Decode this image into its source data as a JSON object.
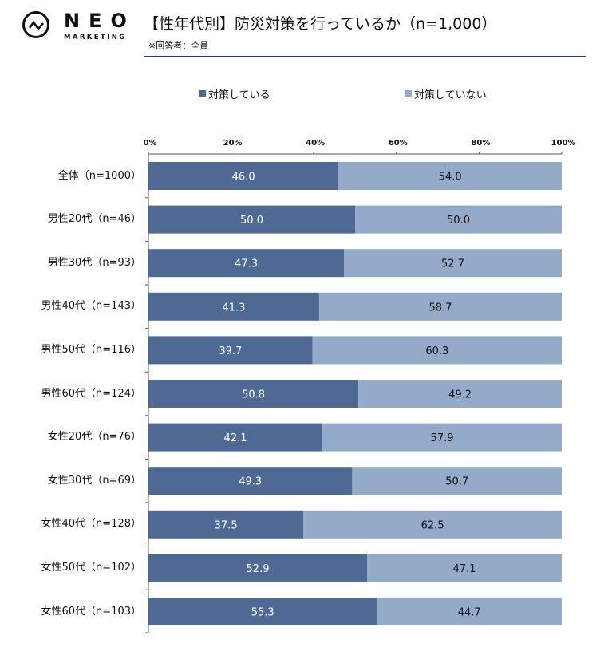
{
  "brand": {
    "logo_name": "NEO",
    "logo_sub": "MARKETING"
  },
  "header": {
    "title": "【性年代別】防災対策を行っているか（n=1,000）",
    "subtitle": "※回答者：全員",
    "rule_color": "#2a3a7c"
  },
  "chart_data": {
    "type": "bar",
    "orientation": "horizontal",
    "stacked": true,
    "title": "【性年代別】防災対策を行っているか（n=1,000）",
    "xlabel": "",
    "ylabel": "",
    "xlim": [
      0,
      100
    ],
    "x_ticks": [
      "0%",
      "20%",
      "40%",
      "60%",
      "80%",
      "100%"
    ],
    "legend_position": "top",
    "categories": [
      "全体（n=1000）",
      "男性20代（n=46）",
      "男性30代（n=93）",
      "男性40代（n=143）",
      "男性50代（n=116）",
      "男性60代（n=124）",
      "女性20代（n=76）",
      "女性30代（n=69）",
      "女性40代（n=128）",
      "女性50代（n=102）",
      "女性60代（n=103）"
    ],
    "series": [
      {
        "name": "対策している",
        "color": "#4e6a94",
        "label_color": "#ffffff",
        "values": [
          46.0,
          50.0,
          47.3,
          41.3,
          39.7,
          50.8,
          42.1,
          49.3,
          37.5,
          52.9,
          55.3
        ],
        "labels": [
          "46.0",
          "50.0",
          "47.3",
          "41.3",
          "39.7",
          "50.8",
          "42.1",
          "49.3",
          "37.5",
          "52.9",
          "55.3"
        ]
      },
      {
        "name": "対策していない",
        "color": "#94aac9",
        "label_color": "#111111",
        "values": [
          54.0,
          50.0,
          52.7,
          58.7,
          60.3,
          49.2,
          57.9,
          50.7,
          62.5,
          47.1,
          44.7
        ],
        "labels": [
          "54.0",
          "50.0",
          "52.7",
          "58.7",
          "60.3",
          "49.2",
          "57.9",
          "50.7",
          "62.5",
          "47.1",
          "44.7"
        ]
      }
    ]
  }
}
